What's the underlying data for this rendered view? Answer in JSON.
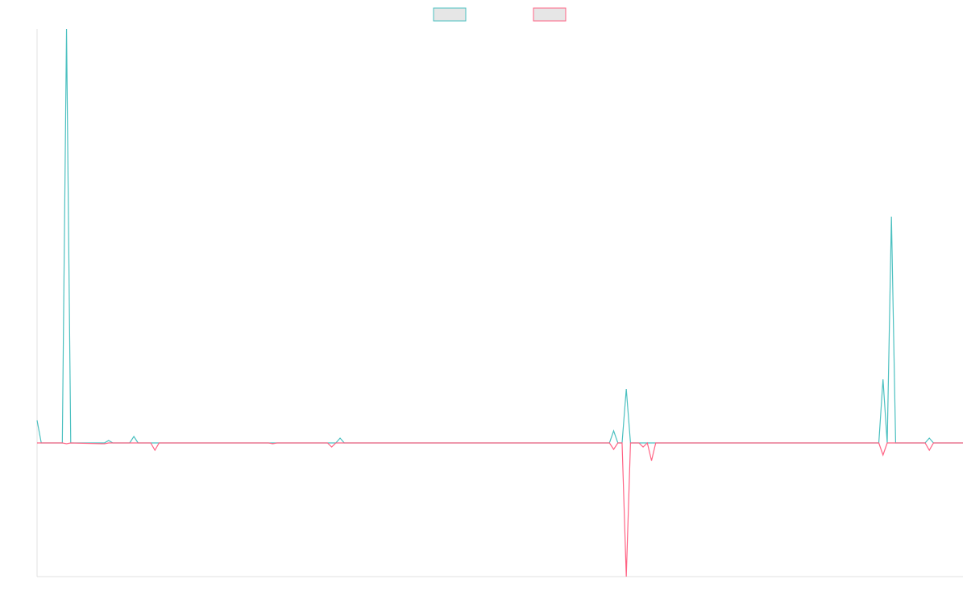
{
  "chart_data": {
    "type": "line",
    "x": [
      0,
      1,
      6,
      7,
      8,
      16,
      17,
      18,
      22,
      23,
      24,
      27,
      28,
      29,
      55,
      56,
      57,
      69,
      70,
      71,
      72,
      73,
      136,
      137,
      138,
      139,
      140,
      141,
      143,
      144,
      145,
      146,
      147,
      200,
      201,
      202,
      203,
      204,
      211,
      212,
      213,
      220
    ],
    "series": [
      {
        "color": "#4bc0c0",
        "values": [
          28,
          0,
          0,
          514,
          0,
          0,
          3,
          0,
          0,
          8,
          0,
          0,
          0,
          0,
          0,
          0,
          0,
          0,
          0,
          0,
          6,
          0,
          0,
          15,
          0,
          0,
          67,
          0,
          0,
          0,
          0,
          0,
          0,
          0,
          79,
          0,
          281,
          0,
          0,
          6,
          0,
          0
        ]
      },
      {
        "color": "#ff6384",
        "values": [
          0,
          0,
          0,
          -1,
          0,
          -1,
          0,
          0,
          0,
          0,
          0,
          0,
          -9,
          0,
          0,
          -1,
          0,
          0,
          -5,
          0,
          0,
          0,
          0,
          -8,
          0,
          0,
          -166,
          0,
          0,
          -5,
          0,
          -22,
          0,
          0,
          -15,
          0,
          0,
          0,
          0,
          -9,
          0,
          0
        ]
      }
    ],
    "xlim": [
      0,
      220
    ],
    "ylim": [
      -166,
      514
    ],
    "legend": "top"
  }
}
